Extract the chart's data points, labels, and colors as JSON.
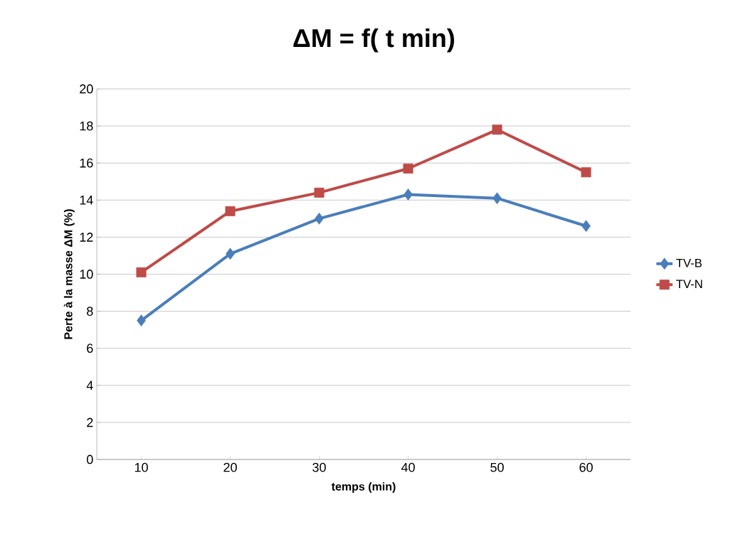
{
  "chart_data": {
    "type": "line",
    "title": "ΔM = f( t min)",
    "xlabel": "temps (min)",
    "ylabel": "Perte à la masse ΔM  (%)",
    "categories": [
      "10",
      "20",
      "30",
      "40",
      "50",
      "60"
    ],
    "series": [
      {
        "name": "TV-B",
        "color": "#4a7ebb",
        "marker": "diamond",
        "values": [
          7.5,
          11.1,
          13.0,
          14.3,
          14.1,
          12.6
        ]
      },
      {
        "name": "TV-N",
        "color": "#be4b48",
        "marker": "square",
        "values": [
          10.1,
          13.4,
          14.4,
          15.7,
          17.8,
          15.5
        ]
      }
    ],
    "ylim": [
      0,
      20
    ],
    "yticks": [
      0,
      2,
      4,
      6,
      8,
      10,
      12,
      14,
      16,
      18,
      20
    ],
    "grid": "y",
    "legend": "right",
    "line_style": "solid"
  }
}
